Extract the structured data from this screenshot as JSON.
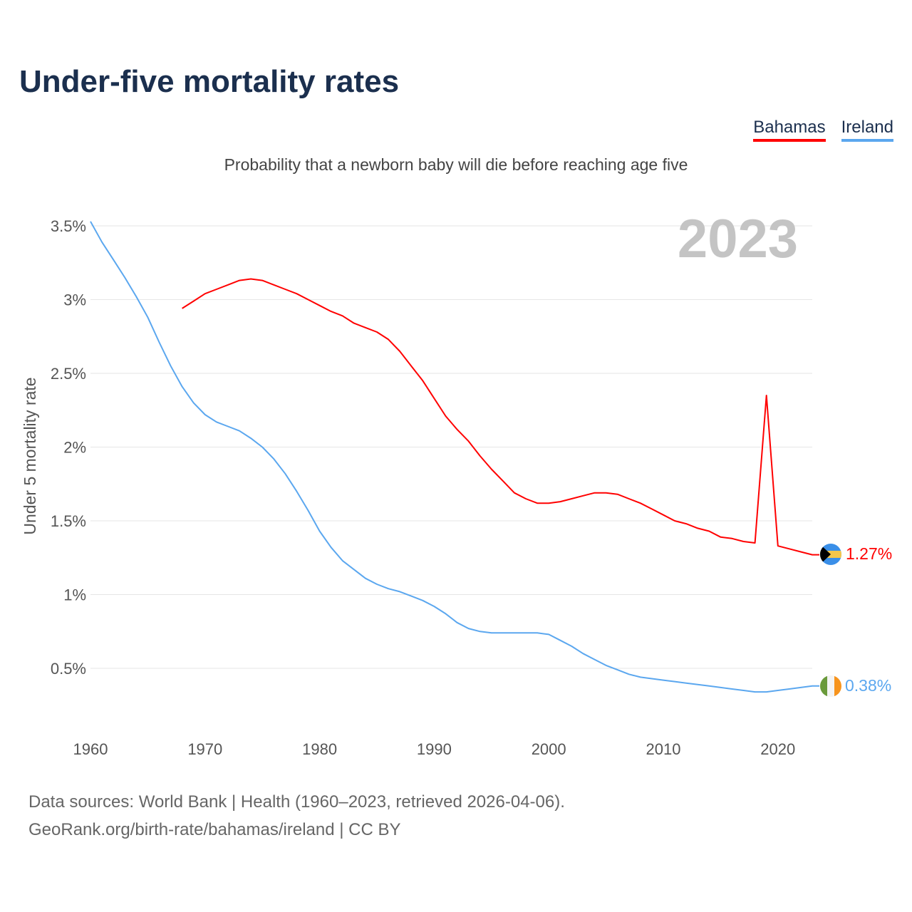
{
  "title": "Under-five mortality rates",
  "subtitle": "Probability that a newborn baby will die before reaching age five",
  "legend": [
    {
      "name": "Bahamas",
      "color": "#ff0000"
    },
    {
      "name": "Ireland",
      "color": "#5ba7ef"
    }
  ],
  "year_label": "2023",
  "end_labels": {
    "bahamas": "1.27%",
    "ireland": "0.38%"
  },
  "footer": {
    "line1": "Data sources: World Bank | Health (1960–2023, retrieved 2026-04-06).",
    "line2": "GeoRank.org/birth-rate/bahamas/ireland | CC BY"
  },
  "chart_data": {
    "type": "line",
    "title": "Under-five mortality rates",
    "xlabel": "",
    "ylabel": "Under 5 mortality rate",
    "xlim": [
      1960,
      2023
    ],
    "ylim": [
      0,
      3.5
    ],
    "x_ticks": [
      "1960",
      "1970",
      "1980",
      "1990",
      "2000",
      "2010",
      "2020"
    ],
    "y_ticks": [
      {
        "v": 0.5,
        "label": "0.5%"
      },
      {
        "v": 1,
        "label": "1%"
      },
      {
        "v": 1.5,
        "label": "1.5%"
      },
      {
        "v": 2,
        "label": "2%"
      },
      {
        "v": 2.5,
        "label": "2.5%"
      },
      {
        "v": 3,
        "label": "3%"
      },
      {
        "v": 3.5,
        "label": "3.5%"
      }
    ],
    "grid": true,
    "legend_position": "top-right",
    "series": [
      {
        "name": "Bahamas",
        "color": "#ff0000",
        "start_year": 1968,
        "values": [
          2.94,
          2.99,
          3.04,
          3.07,
          3.1,
          3.13,
          3.14,
          3.13,
          3.1,
          3.07,
          3.04,
          3.0,
          2.96,
          2.92,
          2.89,
          2.84,
          2.81,
          2.78,
          2.73,
          2.65,
          2.55,
          2.45,
          2.33,
          2.21,
          2.12,
          2.04,
          1.94,
          1.85,
          1.77,
          1.69,
          1.65,
          1.62,
          1.62,
          1.63,
          1.65,
          1.67,
          1.69,
          1.69,
          1.68,
          1.65,
          1.62,
          1.58,
          1.54,
          1.5,
          1.48,
          1.45,
          1.43,
          1.39,
          1.38,
          1.36,
          1.35,
          2.35,
          1.33,
          1.31,
          1.29,
          1.27
        ]
      },
      {
        "name": "Ireland",
        "color": "#5ba7ef",
        "start_year": 1960,
        "values": [
          3.53,
          3.39,
          3.27,
          3.15,
          3.02,
          2.88,
          2.71,
          2.55,
          2.41,
          2.3,
          2.22,
          2.17,
          2.14,
          2.11,
          2.06,
          2.0,
          1.92,
          1.82,
          1.7,
          1.57,
          1.43,
          1.32,
          1.23,
          1.17,
          1.11,
          1.07,
          1.04,
          1.02,
          0.99,
          0.96,
          0.92,
          0.87,
          0.81,
          0.77,
          0.75,
          0.74,
          0.74,
          0.74,
          0.74,
          0.74,
          0.73,
          0.69,
          0.65,
          0.6,
          0.56,
          0.52,
          0.49,
          0.46,
          0.44,
          0.43,
          0.42,
          0.41,
          0.4,
          0.39,
          0.38,
          0.37,
          0.36,
          0.35,
          0.34,
          0.34,
          0.35,
          0.36,
          0.37,
          0.38
        ]
      }
    ]
  }
}
